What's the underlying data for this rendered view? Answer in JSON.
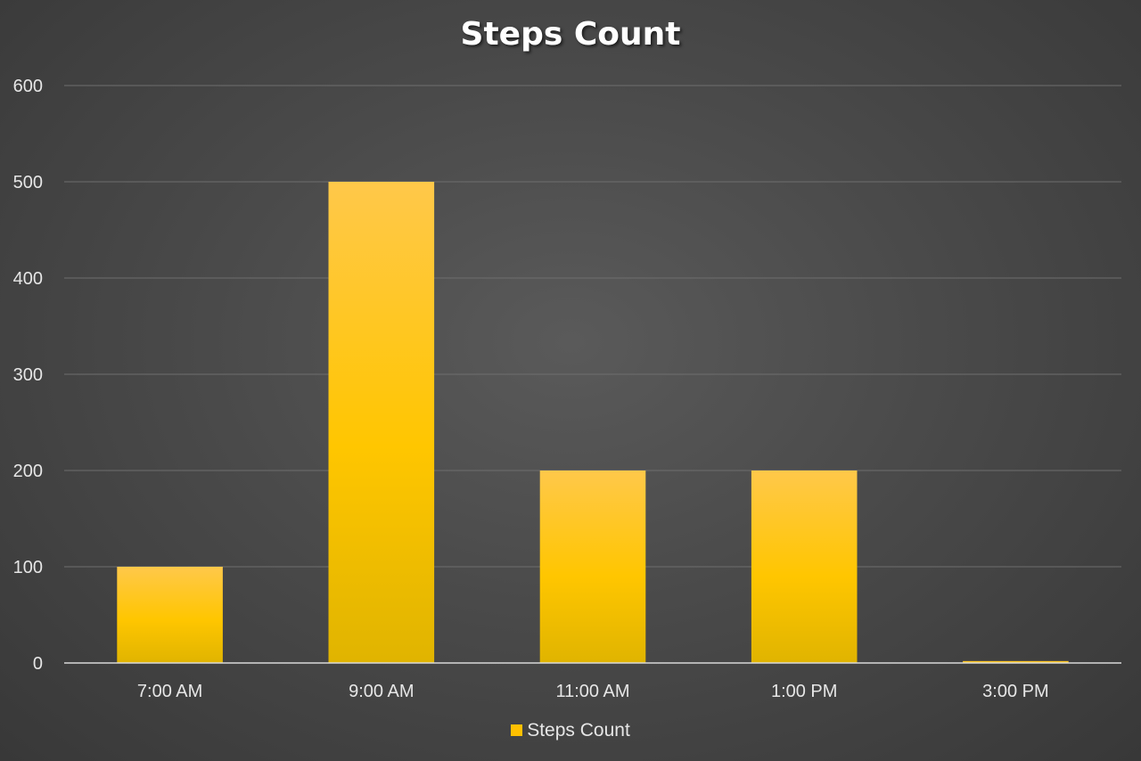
{
  "chart_data": {
    "type": "bar",
    "title": "Steps Count",
    "categories": [
      "7:00 AM",
      "9:00 AM",
      "11:00 AM",
      "1:00 PM",
      "3:00 PM"
    ],
    "series": [
      {
        "name": "Steps Count",
        "values": [
          100,
          500,
          200,
          200,
          2
        ],
        "color": "#ffc000"
      }
    ],
    "ylim": [
      0,
      600
    ],
    "yticks": [
      0,
      100,
      200,
      300,
      400,
      500,
      600
    ],
    "grid": true,
    "legend": "bottom"
  }
}
